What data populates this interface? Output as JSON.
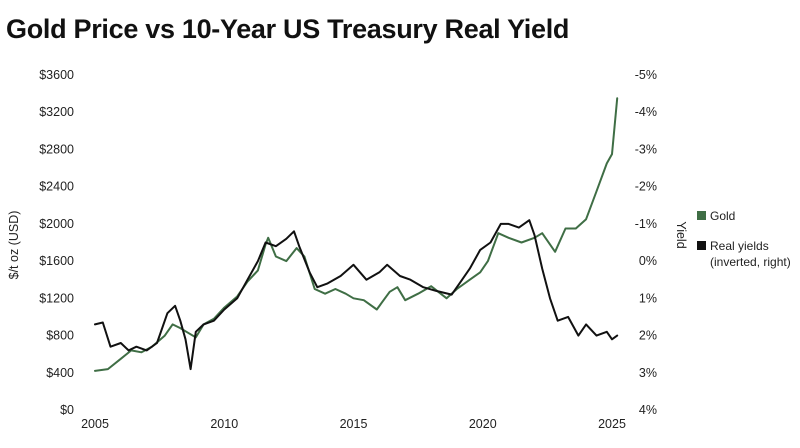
{
  "title": "Gold Price vs 10-Year US Treasury Real Yield",
  "chart_data": {
    "type": "line",
    "title": "Gold Price vs 10-Year US Treasury Real Yield",
    "xlabel": "",
    "ylabel": "$/t oz (USD)",
    "y2label": "Yield",
    "xlim": [
      2005,
      2025
    ],
    "ylim": [
      0,
      3600
    ],
    "y2lim": [
      4,
      -5
    ],
    "y2_inverted": true,
    "xticks": [
      "2005",
      "2010",
      "2015",
      "2020",
      "2025"
    ],
    "yticks": [
      "$0",
      "$400",
      "$800",
      "$1200",
      "$1600",
      "$2000",
      "$2400",
      "$2800",
      "$3200",
      "$3600"
    ],
    "y2ticks": [
      "4%",
      "3%",
      "2%",
      "1%",
      "0%",
      "-1%",
      "-2%",
      "-3%",
      "-4%",
      "-5%"
    ],
    "grid": false,
    "legend_position": "right",
    "series": [
      {
        "name": "Gold",
        "axis": "left",
        "color": "#3f6e45",
        "x": [
          2005.0,
          2005.5,
          2006.0,
          2006.4,
          2006.8,
          2007.2,
          2007.7,
          2008.0,
          2008.3,
          2008.6,
          2008.9,
          2009.2,
          2009.6,
          2010.0,
          2010.5,
          2010.9,
          2011.3,
          2011.6,
          2011.7,
          2012.0,
          2012.4,
          2012.8,
          2013.1,
          2013.5,
          2013.9,
          2014.3,
          2014.7,
          2015.0,
          2015.4,
          2015.9,
          2016.4,
          2016.7,
          2017.0,
          2017.5,
          2018.0,
          2018.6,
          2019.0,
          2019.5,
          2019.9,
          2020.2,
          2020.6,
          2021.0,
          2021.5,
          2022.0,
          2022.3,
          2022.8,
          2023.2,
          2023.6,
          2024.0,
          2024.4,
          2024.8,
          2025.0,
          2025.2
        ],
        "values": [
          420,
          440,
          550,
          640,
          620,
          680,
          800,
          920,
          880,
          830,
          780,
          920,
          980,
          1100,
          1220,
          1380,
          1500,
          1780,
          1850,
          1650,
          1600,
          1740,
          1650,
          1300,
          1250,
          1300,
          1250,
          1200,
          1180,
          1080,
          1270,
          1320,
          1180,
          1250,
          1330,
          1200,
          1300,
          1400,
          1480,
          1600,
          1900,
          1850,
          1800,
          1850,
          1900,
          1700,
          1950,
          1950,
          2050,
          2350,
          2650,
          2750,
          3350
        ]
      },
      {
        "name": "Real yields (inverted, right)",
        "axis": "right",
        "color": "#111111",
        "x": [
          2005.0,
          2005.3,
          2005.6,
          2006.0,
          2006.3,
          2006.6,
          2007.0,
          2007.4,
          2007.8,
          2008.1,
          2008.3,
          2008.5,
          2008.7,
          2008.9,
          2009.2,
          2009.6,
          2010.0,
          2010.5,
          2010.9,
          2011.3,
          2011.6,
          2012.0,
          2012.4,
          2012.7,
          2012.9,
          2013.3,
          2013.6,
          2014.0,
          2014.5,
          2015.0,
          2015.5,
          2016.0,
          2016.3,
          2016.8,
          2017.2,
          2017.7,
          2018.2,
          2018.8,
          2019.1,
          2019.5,
          2019.9,
          2020.3,
          2020.7,
          2021.0,
          2021.4,
          2021.8,
          2022.0,
          2022.3,
          2022.6,
          2022.9,
          2023.3,
          2023.7,
          2024.0,
          2024.4,
          2024.8,
          2025.0,
          2025.2
        ],
        "values": [
          1.7,
          1.65,
          2.3,
          2.2,
          2.4,
          2.3,
          2.4,
          2.2,
          1.4,
          1.2,
          1.6,
          2.1,
          2.9,
          1.9,
          1.7,
          1.6,
          1.3,
          1.0,
          0.5,
          0.0,
          -0.5,
          -0.4,
          -0.6,
          -0.8,
          -0.4,
          0.3,
          0.7,
          0.6,
          0.4,
          0.1,
          0.5,
          0.3,
          0.1,
          0.4,
          0.5,
          0.7,
          0.8,
          0.9,
          0.6,
          0.2,
          -0.3,
          -0.5,
          -1.0,
          -1.0,
          -0.9,
          -1.1,
          -0.7,
          0.2,
          1.0,
          1.6,
          1.5,
          2.0,
          1.7,
          2.0,
          1.9,
          2.1,
          2.0
        ]
      }
    ]
  }
}
